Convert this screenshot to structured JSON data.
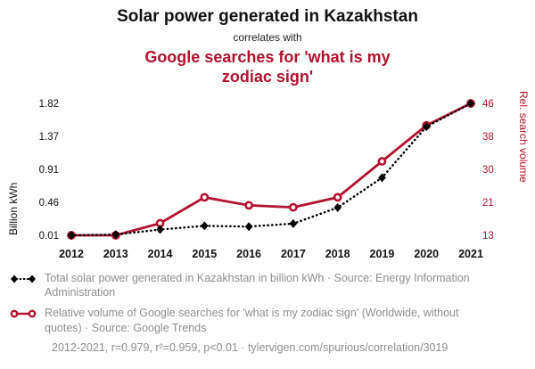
{
  "header": {
    "title": "Solar power generated in Kazakhstan",
    "subtitle": "correlates with",
    "title2": "Google searches for 'what is my zodiac sign'"
  },
  "colors": {
    "accent": "#b2122f",
    "series_black": "#000000",
    "text_muted": "#8e8e8e"
  },
  "chart_data": {
    "type": "line",
    "x": [
      2012,
      2013,
      2014,
      2015,
      2016,
      2017,
      2018,
      2019,
      2020,
      2021
    ],
    "left_axis": {
      "label": "Billion kWh",
      "ticks": [
        "0.01",
        "0.46",
        "0.91",
        "1.37",
        "1.82"
      ],
      "range": [
        0.01,
        1.82
      ]
    },
    "right_axis": {
      "label": "Rel. search volume",
      "ticks": [
        "13",
        "21",
        "30",
        "38",
        "46"
      ],
      "range": [
        13,
        46
      ]
    },
    "grid": false,
    "legend_position": "bottom",
    "series": [
      {
        "name": "Total solar power generated in Kazakhstan in billion kWh",
        "axis": "left",
        "marker": "diamond",
        "line": "dotted",
        "color": "#000000",
        "values": [
          0.01,
          0.02,
          0.09,
          0.14,
          0.13,
          0.17,
          0.39,
          0.8,
          1.5,
          1.82
        ]
      },
      {
        "name": "Relative volume of Google searches for 'what is my zodiac sign'",
        "axis": "right",
        "marker": "circle",
        "line": "solid",
        "color": "#b2122f",
        "values": [
          13,
          13,
          16,
          22.5,
          20.5,
          20,
          22.5,
          31.5,
          40.5,
          46
        ]
      }
    ]
  },
  "legend": {
    "items": [
      {
        "label": "Total solar power generated in Kazakhstan in billion kWh · Source: Energy Information Administration"
      },
      {
        "label": "Relative volume of Google searches for 'what is my zodiac sign' (Worldwide, without quotes) · Source: Google Trends"
      }
    ],
    "footer": "2012-2021, r=0.979, r²=0.959, p<0.01 · tylervigen.com/spurious/correlation/3019"
  }
}
